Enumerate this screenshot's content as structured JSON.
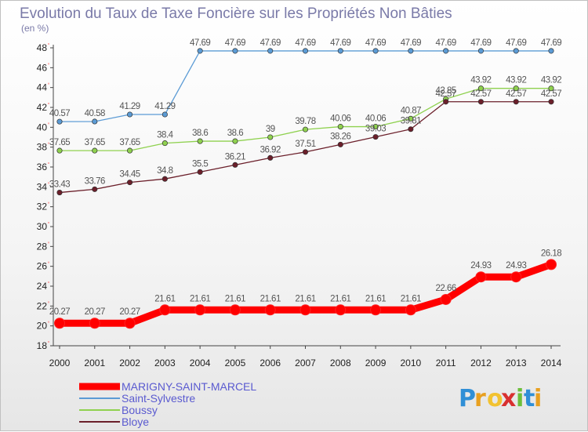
{
  "chart_data": {
    "type": "line",
    "title": "Evolution du Taux de Taxe Foncière sur les Propriétés Non Bâties",
    "subtitle": "(en %)",
    "x": [
      "2000",
      "2001",
      "2002",
      "2003",
      "2004",
      "2005",
      "2006",
      "2007",
      "2008",
      "2009",
      "2010",
      "2011",
      "2012",
      "2013",
      "2014"
    ],
    "ylim": [
      18,
      48
    ],
    "yticks": [
      18,
      20,
      22,
      24,
      26,
      28,
      30,
      32,
      34,
      36,
      38,
      40,
      42,
      44,
      46,
      48
    ],
    "grid": false,
    "legend_position": "bottom-left",
    "series": [
      {
        "name": "MARIGNY-SAINT-MARCEL",
        "color": "#ff0000",
        "values": [
          20.27,
          20.27,
          20.27,
          21.61,
          21.61,
          21.61,
          21.61,
          21.61,
          21.61,
          21.61,
          21.61,
          22.66,
          24.93,
          24.93,
          26.18
        ],
        "labels": [
          "20.27",
          "20.27",
          "20.27",
          "21.61",
          "21.61",
          "21.61",
          "21.61",
          "21.61",
          "21.61",
          "21.61",
          "21.61",
          "22.66",
          "24.93",
          "24.93",
          "26.18"
        ]
      },
      {
        "name": "Saint-Sylvestre",
        "color": "#5b9bd5",
        "values": [
          40.57,
          40.58,
          41.29,
          41.29,
          47.69,
          47.69,
          47.69,
          47.69,
          47.69,
          47.69,
          47.69,
          47.69,
          47.69,
          47.69,
          47.69
        ],
        "labels": [
          "40.57",
          "40.58",
          "41.29",
          "41.29",
          "47.69",
          "47.69",
          "47.69",
          "47.69",
          "47.69",
          "47.69",
          "47.69",
          "47.69",
          "47.69",
          "47.69",
          "47.69"
        ]
      },
      {
        "name": "Boussy",
        "color": "#8fd14f",
        "values": [
          37.65,
          37.65,
          37.65,
          38.4,
          38.6,
          38.6,
          39,
          39.78,
          40.06,
          40.06,
          40.87,
          42.85,
          43.92,
          43.92,
          43.92
        ],
        "labels": [
          "37.65",
          "37.65",
          "37.65",
          "38.4",
          "38.6",
          "38.6",
          "39",
          "39.78",
          "40.06",
          "40.06",
          "40.87",
          "42.85",
          "43.92",
          "43.92",
          "43.92"
        ]
      },
      {
        "name": "Bloye",
        "color": "#6b1f2a",
        "values": [
          33.43,
          33.76,
          34.45,
          34.8,
          35.5,
          36.21,
          36.92,
          37.51,
          38.26,
          39.03,
          39.81,
          42.57,
          42.57,
          42.57,
          42.57
        ],
        "labels": [
          "33.43",
          "33.76",
          "34.45",
          "34.8",
          "35.5",
          "36.21",
          "36.92",
          "37.51",
          "38.26",
          "39.03",
          "39.81",
          "42.57",
          "42.57",
          "42.57",
          "42.57"
        ]
      }
    ]
  },
  "logo": {
    "text": "Proxiti"
  }
}
